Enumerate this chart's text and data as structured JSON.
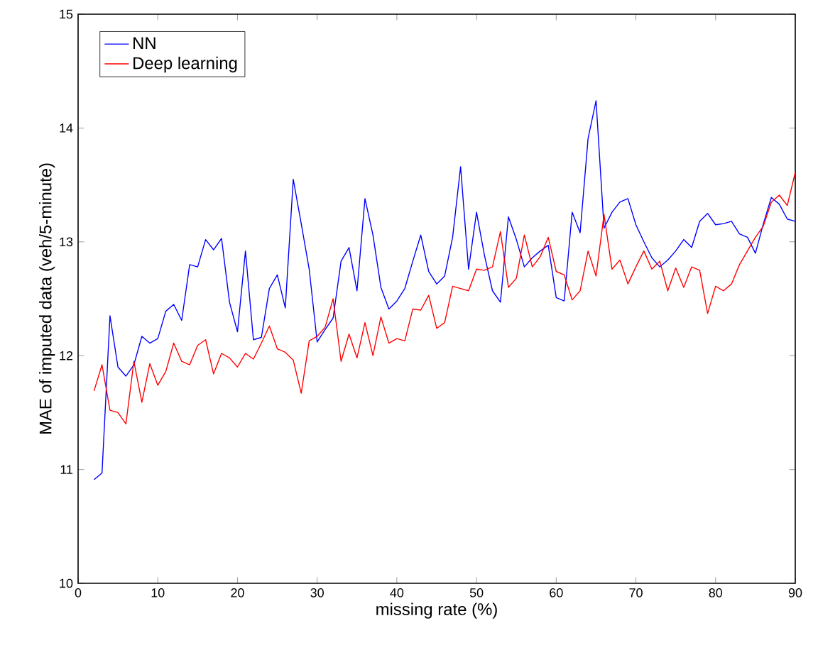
{
  "chart_data": {
    "type": "line",
    "xlabel": "missing rate (%)",
    "ylabel": "MAE of imputed data (veh/5-minute)",
    "x": [
      2,
      3,
      4,
      5,
      6,
      7,
      8,
      9,
      10,
      11,
      12,
      13,
      14,
      15,
      16,
      17,
      18,
      19,
      20,
      21,
      22,
      23,
      24,
      25,
      26,
      27,
      28,
      29,
      30,
      31,
      32,
      33,
      34,
      35,
      36,
      37,
      38,
      39,
      40,
      41,
      42,
      43,
      44,
      45,
      46,
      47,
      48,
      49,
      50,
      51,
      52,
      53,
      54,
      55,
      56,
      57,
      58,
      59,
      60,
      61,
      62,
      63,
      64,
      65,
      66,
      67,
      68,
      69,
      70,
      71,
      72,
      73,
      74,
      75,
      76,
      77,
      78,
      79,
      80,
      81,
      82,
      83,
      84,
      85,
      86,
      87,
      88,
      89,
      90
    ],
    "series": [
      {
        "name": "NN",
        "color": "#0000ff",
        "values": [
          10.91,
          10.97,
          12.35,
          11.9,
          11.82,
          11.92,
          12.17,
          12.11,
          12.15,
          12.39,
          12.45,
          12.31,
          12.8,
          12.78,
          13.02,
          12.93,
          13.03,
          12.47,
          12.21,
          12.92,
          12.14,
          12.16,
          12.59,
          12.71,
          12.42,
          13.55,
          13.16,
          12.76,
          12.12,
          12.23,
          12.33,
          12.83,
          12.95,
          12.57,
          13.38,
          13.06,
          12.6,
          12.41,
          12.48,
          12.59,
          12.83,
          13.06,
          12.74,
          12.63,
          12.7,
          13.04,
          13.66,
          12.76,
          13.26,
          12.88,
          12.57,
          12.47,
          13.22,
          13.02,
          12.78,
          12.86,
          12.92,
          12.97,
          12.51,
          12.48,
          13.26,
          13.08,
          13.91,
          14.24,
          13.12,
          13.26,
          13.35,
          13.38,
          13.15,
          13.0,
          12.86,
          12.78,
          12.84,
          12.92,
          13.02,
          12.95,
          13.18,
          13.25,
          13.15,
          13.16,
          13.18,
          13.07,
          13.04,
          12.9,
          13.16,
          13.39,
          13.33,
          13.2,
          13.18
        ]
      },
      {
        "name": "Deep learning",
        "color": "#ff0000",
        "values": [
          11.69,
          11.92,
          11.52,
          11.5,
          11.4,
          11.95,
          11.59,
          11.93,
          11.74,
          11.86,
          12.11,
          11.95,
          11.92,
          12.09,
          12.14,
          11.84,
          12.02,
          11.98,
          11.9,
          12.02,
          11.97,
          12.11,
          12.26,
          12.06,
          12.03,
          11.96,
          11.67,
          12.13,
          12.17,
          12.25,
          12.5,
          11.95,
          12.19,
          11.98,
          12.29,
          12.0,
          12.34,
          12.11,
          12.15,
          12.13,
          12.41,
          12.4,
          12.53,
          12.24,
          12.29,
          12.61,
          12.59,
          12.57,
          12.76,
          12.75,
          12.78,
          13.09,
          12.6,
          12.68,
          13.06,
          12.78,
          12.87,
          13.04,
          12.74,
          12.71,
          12.49,
          12.57,
          12.92,
          12.7,
          13.24,
          12.76,
          12.84,
          12.63,
          12.78,
          12.92,
          12.76,
          12.83,
          12.57,
          12.77,
          12.6,
          12.78,
          12.75,
          12.37,
          12.61,
          12.57,
          12.63,
          12.8,
          12.92,
          13.04,
          13.14,
          13.35,
          13.41,
          13.32,
          13.61
        ]
      }
    ],
    "xlim": [
      0,
      90
    ],
    "xticks": [
      0,
      10,
      20,
      30,
      40,
      50,
      60,
      70,
      80,
      90
    ],
    "ylim": [
      10,
      15
    ],
    "yticks": [
      10,
      11,
      12,
      13,
      14,
      15
    ],
    "legend": "top left",
    "marker": "none",
    "line_style": "solid"
  }
}
